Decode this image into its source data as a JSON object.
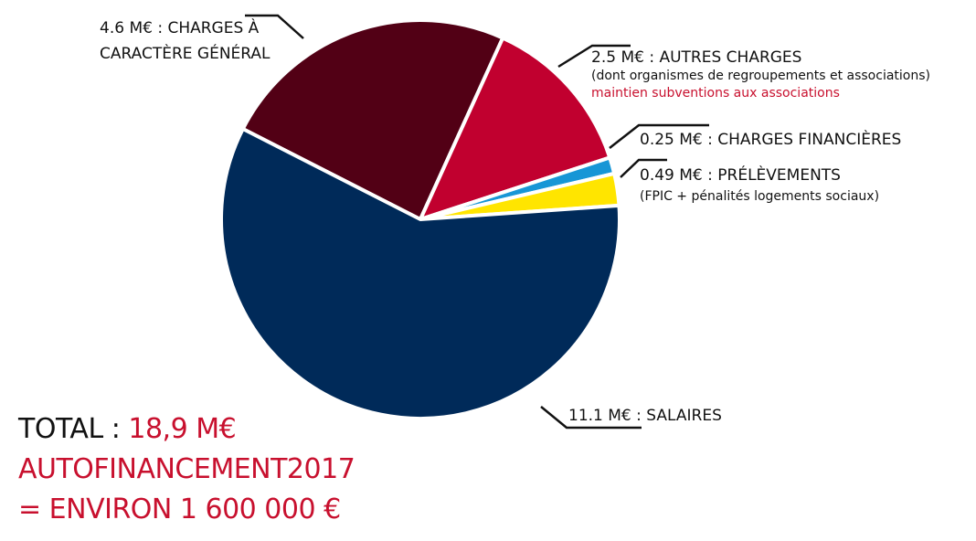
{
  "chart_data": {
    "type": "pie",
    "unit": "M€",
    "slices": [
      {
        "label": "CHARGES À CARACTÈRE GÉNÉRAL",
        "value": 4.6,
        "color": "#520015",
        "text_lines": [
          "4.6 M€ : CHARGES À",
          "CARACTÈRE GÉNÉRAL"
        ]
      },
      {
        "label": "AUTRES CHARGES",
        "value": 2.5,
        "color": "#c1002f",
        "text_lines": [
          "2.5 M€ : AUTRES CHARGES",
          "(dont organismes de regroupements et associations)"
        ],
        "note": "maintien subventions aux associations"
      },
      {
        "label": "CHARGES FINANCIÈRES",
        "value": 0.25,
        "color": "#1796d6",
        "text_lines": [
          "0.25 M€ : CHARGES FINANCIÈRES"
        ]
      },
      {
        "label": "PRÉLÈVEMENTS",
        "value": 0.49,
        "color": "#ffe500",
        "text_lines": [
          "0.49 M€ : PRÉLÈVEMENTS",
          "(FPIC + pénalités logements sociaux)"
        ]
      },
      {
        "label": "SALAIRES",
        "value": 11.1,
        "color": "#002a59",
        "text_lines": [
          "11.1 M€ : SALAIRES"
        ]
      }
    ],
    "legend": "none"
  },
  "summary": {
    "total_label": "TOTAL : ",
    "total_value": "18,9 M€",
    "line2": "AUTOFINANCEMENT2017",
    "line3": "= ENVIRON 1 600 000 €"
  }
}
